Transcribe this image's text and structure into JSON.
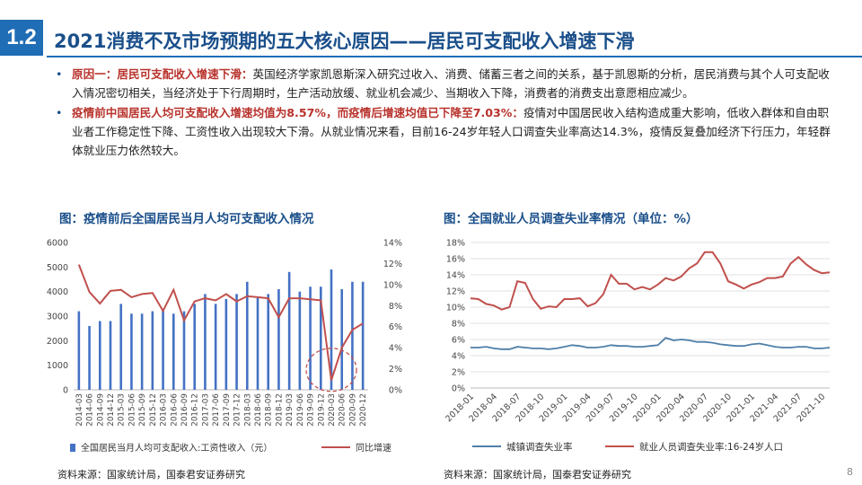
{
  "header": {
    "section_number": "1.2",
    "title": "2021消费不及市场预期的五大核心原因——居民可支配收入增速下滑"
  },
  "bullets": [
    {
      "lead": "原因一：居民可支配收入增速下滑：",
      "text": "英国经济学家凯恩斯深入研究过收入、消费、储蓄三者之间的关系，基于凯恩斯的分析，居民消费与其个人可支配收入情况密切相关，当经济处于下行周期时，生产活动放缓、就业机会减少、当期收入下降，消费者的消费支出意愿相应减少。"
    },
    {
      "lead": "疫情前中国居民人均可支配收入增速均值为8.57%，而疫情后增速均值已下降至7.03%：",
      "text": "疫情对中国居民收入结构造成重大影响，低收入群体和自由职业者工作稳定性下降、工资性收入出现较大下滑。从就业情况来看，目前16-24岁年轻人口调查失业率高达14.3%，疫情反复叠加经济下行压力，年轻群体就业压力依然较大。"
    }
  ],
  "chart1_title": "图：疫情前后全国居民当月人均可支配收入情况",
  "chart2_title": "图：全国就业人员调查失业率情况（单位：%）",
  "source1": "资料来源：国家统计局，国泰君安证券研究",
  "source2": "资料来源：国家统计局，国泰君安证券研究",
  "page_number": "8",
  "chart_data": [
    {
      "type": "bar",
      "categories": [
        "2014-03",
        "2014-06",
        "2014-09",
        "2014-12",
        "2015-03",
        "2015-06",
        "2015-09",
        "2015-12",
        "2016-03",
        "2016-06",
        "2016-09",
        "2016-12",
        "2017-03",
        "2017-06",
        "2017-09",
        "2017-12",
        "2018-03",
        "2018-06",
        "2018-09",
        "2018-12",
        "2019-03",
        "2019-06",
        "2019-09",
        "2019-12",
        "2020-03",
        "2020-06",
        "2020-09",
        "2020-12"
      ],
      "left_axis": {
        "ticks": [
          "0",
          "1000",
          "2000",
          "3000",
          "4000",
          "5000",
          "6000"
        ],
        "ylim": [
          0,
          6000
        ]
      },
      "right_axis": {
        "ticks": [
          "0%",
          "2%",
          "4%",
          "6%",
          "8%",
          "10%",
          "12%",
          "14%"
        ],
        "ylim": [
          0,
          14
        ]
      },
      "series": [
        {
          "name": "全国居民当月人均可支配收入:工资性收入（元）",
          "kind": "bar",
          "axis": "left",
          "color": "#4472c4",
          "values": [
            3200,
            2600,
            2800,
            2800,
            3500,
            3100,
            3100,
            3200,
            3300,
            3100,
            3200,
            3500,
            3900,
            3500,
            3700,
            3900,
            4400,
            3800,
            3900,
            4100,
            4800,
            4000,
            4200,
            4200,
            4900,
            4100,
            4400,
            4400
          ]
        },
        {
          "name": "同比增速",
          "kind": "line",
          "axis": "right",
          "color": "#c0504d",
          "values": [
            11.9,
            9.3,
            8.2,
            9.4,
            9.5,
            8.8,
            9.1,
            9.2,
            7.5,
            9.5,
            6.6,
            8.4,
            8.7,
            8.5,
            9.1,
            8.4,
            8.9,
            8.8,
            8.7,
            6.9,
            8.7,
            8.7,
            8.6,
            8.5,
            0.9,
            4.0,
            5.7,
            6.3
          ]
        }
      ],
      "annotation": "red dashed ellipse highlighting 2019-12 to 2020-03 drop"
    },
    {
      "type": "line",
      "x": [
        "2018-01",
        "2018-02",
        "2018-03",
        "2018-04",
        "2018-05",
        "2018-06",
        "2018-07",
        "2018-08",
        "2018-09",
        "2018-10",
        "2018-11",
        "2018-12",
        "2019-01",
        "2019-02",
        "2019-03",
        "2019-04",
        "2019-05",
        "2019-06",
        "2019-07",
        "2019-08",
        "2019-09",
        "2019-10",
        "2019-11",
        "2019-12",
        "2020-01",
        "2020-02",
        "2020-03",
        "2020-04",
        "2020-05",
        "2020-06",
        "2020-07",
        "2020-08",
        "2020-09",
        "2020-10",
        "2020-11",
        "2020-12",
        "2021-01",
        "2021-02",
        "2021-03",
        "2021-04",
        "2021-05",
        "2021-06",
        "2021-07",
        "2021-08",
        "2021-09",
        "2021-10",
        "2021-11"
      ],
      "xtick_labels": [
        "2018-01",
        "2018-04",
        "2018-07",
        "2018-10",
        "2019-01",
        "2019-04",
        "2019-07",
        "2019-10",
        "2020-01",
        "2020-04",
        "2020-07",
        "2020-10",
        "2021-01",
        "2021-04",
        "2021-07",
        "2021-10"
      ],
      "y_axis": {
        "ticks": [
          "0%",
          "2%",
          "4%",
          "6%",
          "8%",
          "10%",
          "12%",
          "14%",
          "16%",
          "18%"
        ],
        "ylim": [
          0,
          18
        ]
      },
      "grid": true,
      "series": [
        {
          "name": "城镇调查失业率",
          "color": "#4f7fa8",
          "values": [
            5.0,
            5.0,
            5.1,
            4.9,
            4.8,
            4.8,
            5.1,
            5.0,
            4.9,
            4.9,
            4.8,
            4.9,
            5.1,
            5.3,
            5.2,
            5.0,
            5.0,
            5.1,
            5.3,
            5.2,
            5.2,
            5.1,
            5.1,
            5.2,
            5.3,
            6.2,
            5.9,
            6.0,
            5.9,
            5.7,
            5.7,
            5.6,
            5.4,
            5.3,
            5.2,
            5.2,
            5.4,
            5.5,
            5.3,
            5.1,
            5.0,
            5.0,
            5.1,
            5.1,
            4.9,
            4.9,
            5.0
          ]
        },
        {
          "name": "就业人员调查失业率:16-24岁人口",
          "color": "#c0504d",
          "values": [
            11.1,
            11.0,
            10.4,
            10.2,
            9.7,
            10.0,
            13.2,
            13.0,
            11.0,
            9.8,
            10.1,
            10.0,
            11.0,
            11.0,
            11.1,
            10.1,
            10.5,
            11.6,
            14.0,
            12.9,
            12.9,
            12.2,
            12.5,
            12.2,
            12.8,
            13.6,
            13.3,
            13.8,
            14.8,
            15.4,
            16.8,
            16.8,
            15.4,
            13.2,
            12.8,
            12.3,
            12.8,
            13.1,
            13.6,
            13.6,
            13.8,
            15.4,
            16.2,
            15.3,
            14.6,
            14.2,
            14.3
          ]
        }
      ]
    }
  ]
}
